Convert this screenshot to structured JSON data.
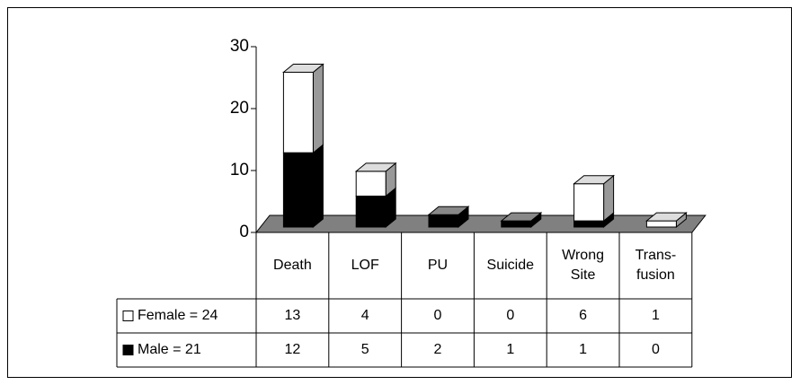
{
  "chart_data": {
    "type": "bar",
    "stacked": true,
    "categories": [
      "Death",
      "LOF",
      "PU",
      "Suicide",
      "Wrong\nSite",
      "Trans-\nfusion"
    ],
    "series": [
      {
        "name": "Male = 21",
        "color": "#000000",
        "values": [
          12,
          5,
          2,
          1,
          1,
          0
        ]
      },
      {
        "name": "Female = 24",
        "color": "#ffffff",
        "values": [
          13,
          4,
          0,
          0,
          6,
          1
        ]
      }
    ],
    "ylim": [
      0,
      30
    ],
    "yticks": [
      0,
      10,
      20,
      30
    ],
    "floor_color": "#808080"
  }
}
